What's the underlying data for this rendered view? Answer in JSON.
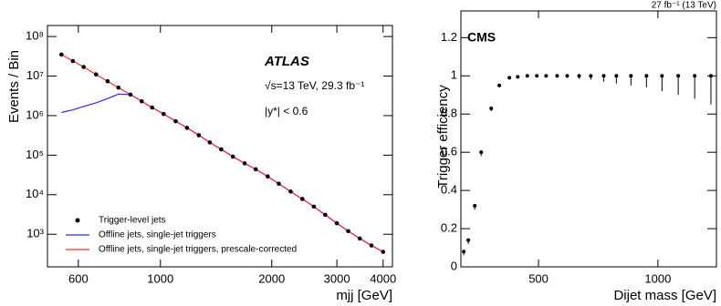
{
  "chart_data": [
    {
      "type": "line",
      "title": "ATLAS",
      "annotations": [
        "√s=13 TeV, 29.3 fb⁻¹",
        "|y*| < 0.6"
      ],
      "x_label": "mjj [GeV]",
      "y_label": "Events / Bin",
      "xlog": true,
      "ylog": true,
      "xlim": [
        495,
        4240
      ],
      "ylim": [
        150,
        190000000
      ],
      "xticks": [
        600,
        1000,
        2000,
        3000,
        4000
      ],
      "yticks": [
        {
          "value": 1000,
          "label": "10³"
        },
        {
          "value": 10000,
          "label": "10⁴"
        },
        {
          "value": 100000,
          "label": "10⁵"
        },
        {
          "value": 1000000,
          "label": "10⁶"
        },
        {
          "value": 10000000,
          "label": "10⁷"
        },
        {
          "value": 100000000,
          "label": "10⁸"
        }
      ],
      "x": [
        540,
        580,
        620,
        670,
        720,
        770,
        830,
        890,
        950,
        1020,
        1100,
        1180,
        1270,
        1360,
        1460,
        1570,
        1690,
        1810,
        1950,
        2090,
        2250,
        2420,
        2600,
        2790,
        3000,
        3220,
        3460,
        3720,
        4000
      ],
      "series": [
        {
          "name": "Trigger-level jets",
          "color": "#000000",
          "kind": "points",
          "values": [
            35000000,
            24000000,
            17000000,
            11000000,
            7400000,
            5100000,
            3400000,
            2300000,
            1600000,
            1100000,
            720000,
            490000,
            320000,
            210000,
            140000,
            92000,
            62000,
            44000,
            29000,
            19000,
            12000,
            7800,
            5000,
            3100,
            1900,
            1200,
            780,
            520,
            360
          ]
        },
        {
          "name": "Offline jets, single-jet triggers",
          "color": "#2a2aff",
          "kind": "line",
          "values": [
            1200000,
            1400000,
            1700000,
            2100000,
            2700000,
            3500000,
            3400000,
            2300000,
            1600000,
            1100000,
            720000,
            490000,
            320000,
            210000,
            140000,
            92000,
            62000,
            44000,
            29000,
            19000,
            12000,
            7800,
            5000,
            3100,
            1900,
            1200,
            780,
            520,
            360
          ]
        },
        {
          "name": "Offline jets, single-jet triggers, prescale-corrected",
          "color": "#ff2a2a",
          "kind": "line",
          "values": [
            35000000,
            24000000,
            17000000,
            11000000,
            7400000,
            5100000,
            3400000,
            2300000,
            1600000,
            1100000,
            720000,
            490000,
            320000,
            210000,
            140000,
            92000,
            62000,
            44000,
            29000,
            19000,
            12000,
            7800,
            5000,
            3100,
            1900,
            1200,
            780,
            520,
            360
          ]
        }
      ]
    },
    {
      "type": "scatter",
      "title": "CMS",
      "subtitle": "27 fb⁻¹ (13 TeV)",
      "x_label": "Dijet mass [GeV]",
      "y_label": "Trigger efficiency",
      "xlim": [
        175,
        1245
      ],
      "ylim": [
        0,
        1.34
      ],
      "xticks": [
        500,
        1000
      ],
      "yticks": [
        0,
        0.2,
        0.4,
        0.6,
        0.8,
        1,
        1.2
      ],
      "color": "#000000",
      "x": [
        187,
        206,
        233,
        260,
        302,
        336,
        378,
        413,
        453,
        493,
        532,
        578,
        620,
        670,
        719,
        773,
        826,
        887,
        952,
        1017,
        1085,
        1154,
        1222
      ],
      "values": [
        0.08,
        0.14,
        0.32,
        0.6,
        0.83,
        0.95,
        0.99,
        0.995,
        1,
        1,
        1,
        1,
        1,
        1,
        1,
        1,
        1,
        1,
        1,
        1,
        1,
        1,
        1
      ],
      "errors_low": [
        0.02,
        0.02,
        0.02,
        0.02,
        0.015,
        0.01,
        0.005,
        0.005,
        0.005,
        0.005,
        0.005,
        0.005,
        0.01,
        0.015,
        0.02,
        0.03,
        0.04,
        0.05,
        0.06,
        0.08,
        0.1,
        0.12,
        0.15
      ]
    }
  ]
}
